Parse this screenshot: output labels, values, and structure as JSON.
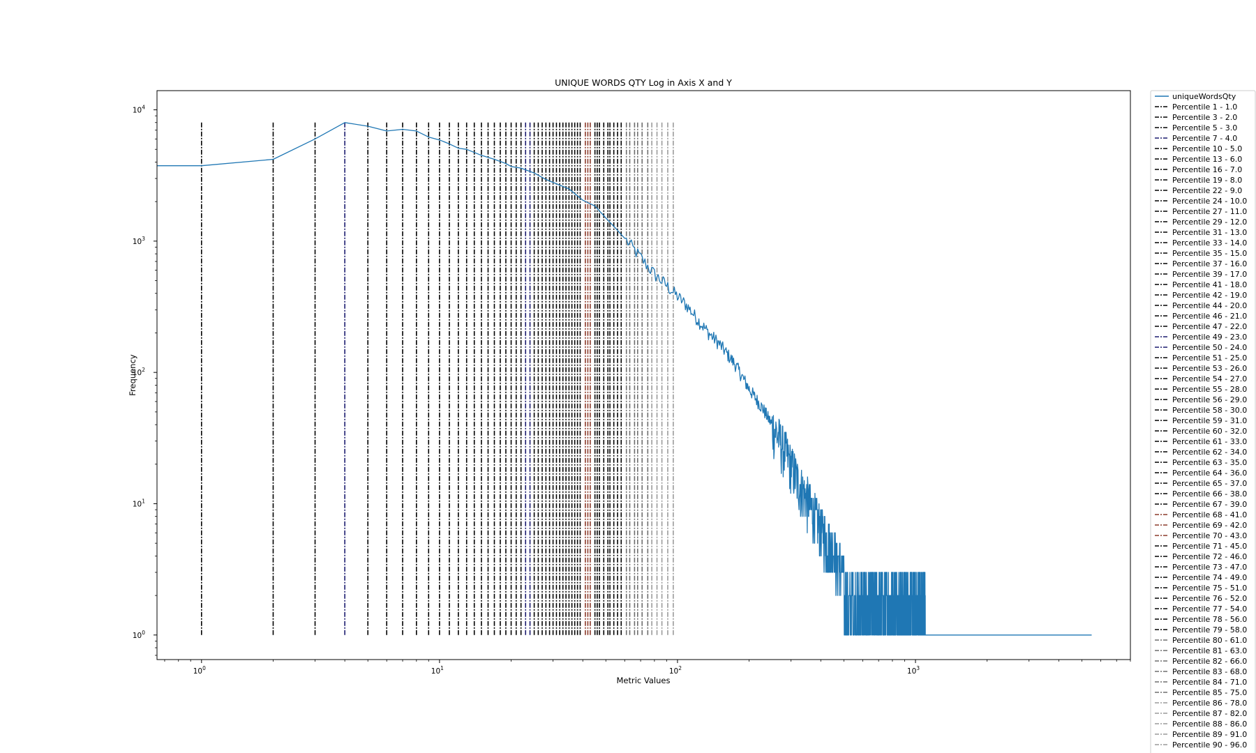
{
  "chart_data": {
    "type": "line",
    "title": "UNIQUE WORDS QTY Log in Axis X and Y",
    "xlabel": "Metric Values",
    "ylabel": "Frequency",
    "xscale": "log",
    "yscale": "log",
    "xlim": [
      0.65,
      8000
    ],
    "ylim": [
      0.65,
      14000
    ],
    "x_ticks": [
      {
        "value": 1,
        "base": "10",
        "exp": "0"
      },
      {
        "value": 10,
        "base": "10",
        "exp": "1"
      },
      {
        "value": 100,
        "base": "10",
        "exp": "2"
      },
      {
        "value": 1000,
        "base": "10",
        "exp": "3"
      }
    ],
    "y_ticks": [
      {
        "value": 1,
        "base": "10",
        "exp": "0"
      },
      {
        "value": 10,
        "base": "10",
        "exp": "1"
      },
      {
        "value": 100,
        "base": "10",
        "exp": "2"
      },
      {
        "value": 1000,
        "base": "10",
        "exp": "3"
      },
      {
        "value": 10000,
        "base": "10",
        "exp": "4"
      }
    ],
    "grid": false,
    "legend_position": "outside right, upper",
    "series": [
      {
        "name": "uniqueWordsQty",
        "color": "#1f77b4",
        "points": [
          [
            0.5,
            3750
          ],
          [
            1,
            3750
          ],
          [
            2,
            4200
          ],
          [
            3,
            6000
          ],
          [
            4,
            8000
          ],
          [
            5,
            7500
          ],
          [
            6,
            6900
          ],
          [
            7,
            7100
          ],
          [
            8,
            6900
          ],
          [
            9,
            6200
          ],
          [
            10,
            5900
          ],
          [
            11,
            5500
          ],
          [
            12,
            5100
          ],
          [
            13,
            5000
          ],
          [
            15,
            4500
          ],
          [
            17,
            4200
          ],
          [
            19,
            3900
          ],
          [
            20,
            3700
          ],
          [
            22,
            3600
          ],
          [
            25,
            3300
          ],
          [
            28,
            2950
          ],
          [
            30,
            2800
          ],
          [
            35,
            2500
          ],
          [
            40,
            2050
          ],
          [
            45,
            1850
          ],
          [
            50,
            1500
          ],
          [
            55,
            1250
          ],
          [
            60,
            1050
          ],
          [
            70,
            750
          ],
          [
            80,
            560
          ],
          [
            90,
            460
          ],
          [
            100,
            380
          ],
          [
            110,
            320
          ],
          [
            120,
            260
          ],
          [
            135,
            200
          ],
          [
            150,
            165
          ],
          [
            175,
            115
          ],
          [
            200,
            75
          ],
          [
            230,
            52
          ],
          [
            260,
            35
          ],
          [
            290,
            23
          ],
          [
            320,
            15
          ],
          [
            360,
            10
          ],
          [
            400,
            6.5
          ],
          [
            450,
            4.5
          ],
          [
            500,
            3
          ],
          [
            550,
            2.5
          ],
          [
            600,
            2
          ],
          [
            650,
            1.8
          ],
          [
            700,
            1.5
          ],
          [
            800,
            1.3
          ],
          [
            900,
            1.2
          ],
          [
            1000,
            1.1
          ],
          [
            1100,
            1
          ],
          [
            5500,
            1
          ]
        ],
        "noise_from": 250
      }
    ],
    "percentile_lines": {
      "ymin": 1,
      "ymax": 8000,
      "entries": [
        {
          "label": "Percentile 1 - 1.0",
          "p": 1,
          "x": 1.0
        },
        {
          "label": "Percentile 3 - 2.0",
          "p": 3,
          "x": 2.0
        },
        {
          "label": "Percentile 5 - 3.0",
          "p": 5,
          "x": 3.0
        },
        {
          "label": "Percentile 7 - 4.0",
          "p": 7,
          "x": 4.0
        },
        {
          "label": "Percentile 10 - 5.0",
          "p": 10,
          "x": 5.0
        },
        {
          "label": "Percentile 13 - 6.0",
          "p": 13,
          "x": 6.0
        },
        {
          "label": "Percentile 16 - 7.0",
          "p": 16,
          "x": 7.0
        },
        {
          "label": "Percentile 19 - 8.0",
          "p": 19,
          "x": 8.0
        },
        {
          "label": "Percentile 22 - 9.0",
          "p": 22,
          "x": 9.0
        },
        {
          "label": "Percentile 24 - 10.0",
          "p": 24,
          "x": 10.0
        },
        {
          "label": "Percentile 27 - 11.0",
          "p": 27,
          "x": 11.0
        },
        {
          "label": "Percentile 29 - 12.0",
          "p": 29,
          "x": 12.0
        },
        {
          "label": "Percentile 31 - 13.0",
          "p": 31,
          "x": 13.0
        },
        {
          "label": "Percentile 33 - 14.0",
          "p": 33,
          "x": 14.0
        },
        {
          "label": "Percentile 35 - 15.0",
          "p": 35,
          "x": 15.0
        },
        {
          "label": "Percentile 37 - 16.0",
          "p": 37,
          "x": 16.0
        },
        {
          "label": "Percentile 39 - 17.0",
          "p": 39,
          "x": 17.0
        },
        {
          "label": "Percentile 41 - 18.0",
          "p": 41,
          "x": 18.0
        },
        {
          "label": "Percentile 42 - 19.0",
          "p": 42,
          "x": 19.0
        },
        {
          "label": "Percentile 44 - 20.0",
          "p": 44,
          "x": 20.0
        },
        {
          "label": "Percentile 46 - 21.0",
          "p": 46,
          "x": 21.0
        },
        {
          "label": "Percentile 47 - 22.0",
          "p": 47,
          "x": 22.0
        },
        {
          "label": "Percentile 49 - 23.0",
          "p": 49,
          "x": 23.0
        },
        {
          "label": "Percentile 50 - 24.0",
          "p": 50,
          "x": 24.0
        },
        {
          "label": "Percentile 51 - 25.0",
          "p": 51,
          "x": 25.0
        },
        {
          "label": "Percentile 53 - 26.0",
          "p": 53,
          "x": 26.0
        },
        {
          "label": "Percentile 54 - 27.0",
          "p": 54,
          "x": 27.0
        },
        {
          "label": "Percentile 55 - 28.0",
          "p": 55,
          "x": 28.0
        },
        {
          "label": "Percentile 56 - 29.0",
          "p": 56,
          "x": 29.0
        },
        {
          "label": "Percentile 58 - 30.0",
          "p": 58,
          "x": 30.0
        },
        {
          "label": "Percentile 59 - 31.0",
          "p": 59,
          "x": 31.0
        },
        {
          "label": "Percentile 60 - 32.0",
          "p": 60,
          "x": 32.0
        },
        {
          "label": "Percentile 61 - 33.0",
          "p": 61,
          "x": 33.0
        },
        {
          "label": "Percentile 62 - 34.0",
          "p": 62,
          "x": 34.0
        },
        {
          "label": "Percentile 63 - 35.0",
          "p": 63,
          "x": 35.0
        },
        {
          "label": "Percentile 64 - 36.0",
          "p": 64,
          "x": 36.0
        },
        {
          "label": "Percentile 65 - 37.0",
          "p": 65,
          "x": 37.0
        },
        {
          "label": "Percentile 66 - 38.0",
          "p": 66,
          "x": 38.0
        },
        {
          "label": "Percentile 67 - 39.0",
          "p": 67,
          "x": 39.0
        },
        {
          "label": "Percentile 68 - 41.0",
          "p": 68,
          "x": 41.0
        },
        {
          "label": "Percentile 69 - 42.0",
          "p": 69,
          "x": 42.0
        },
        {
          "label": "Percentile 70 - 43.0",
          "p": 70,
          "x": 43.0
        },
        {
          "label": "Percentile 71 - 45.0",
          "p": 71,
          "x": 45.0
        },
        {
          "label": "Percentile 72 - 46.0",
          "p": 72,
          "x": 46.0
        },
        {
          "label": "Percentile 73 - 47.0",
          "p": 73,
          "x": 47.0
        },
        {
          "label": "Percentile 74 - 49.0",
          "p": 74,
          "x": 49.0
        },
        {
          "label": "Percentile 75 - 51.0",
          "p": 75,
          "x": 51.0
        },
        {
          "label": "Percentile 76 - 52.0",
          "p": 76,
          "x": 52.0
        },
        {
          "label": "Percentile 77 - 54.0",
          "p": 77,
          "x": 54.0
        },
        {
          "label": "Percentile 78 - 56.0",
          "p": 78,
          "x": 56.0
        },
        {
          "label": "Percentile 79 - 58.0",
          "p": 79,
          "x": 58.0
        },
        {
          "label": "Percentile 80 - 61.0",
          "p": 80,
          "x": 61.0
        },
        {
          "label": "Percentile 81 - 63.0",
          "p": 81,
          "x": 63.0
        },
        {
          "label": "Percentile 82 - 66.0",
          "p": 82,
          "x": 66.0
        },
        {
          "label": "Percentile 83 - 68.0",
          "p": 83,
          "x": 68.0
        },
        {
          "label": "Percentile 84 - 71.0",
          "p": 84,
          "x": 71.0
        },
        {
          "label": "Percentile 85 - 75.0",
          "p": 85,
          "x": 75.0
        },
        {
          "label": "Percentile 86 - 78.0",
          "p": 86,
          "x": 78.0
        },
        {
          "label": "Percentile 87 - 82.0",
          "p": 87,
          "x": 82.0
        },
        {
          "label": "Percentile 88 - 86.0",
          "p": 88,
          "x": 86.0
        },
        {
          "label": "Percentile 89 - 91.0",
          "p": 89,
          "x": 91.0
        },
        {
          "label": "Percentile 90 - 96.0",
          "p": 90,
          "x": 96.0
        }
      ]
    }
  }
}
